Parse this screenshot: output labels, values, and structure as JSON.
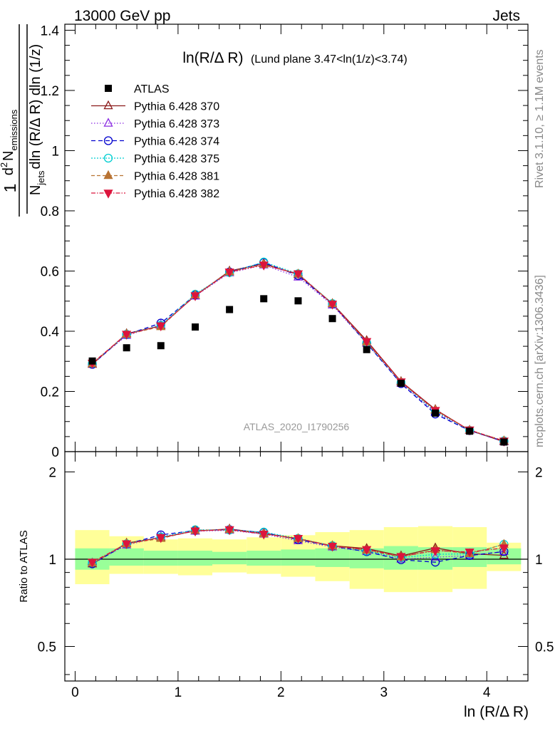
{
  "header": {
    "left": "13000 GeV pp",
    "right": "Jets"
  },
  "side": {
    "rivet": "Rivet 3.1.10, ≥ 1.1M events",
    "mcplots": "mcplots.cern.ch [arXiv:1306.3436]"
  },
  "chart_data": {
    "type": "scatter",
    "title": "ln(R/Δ R) (Lund plane 3.47<ln(1/z)<3.74)",
    "title_main": "ln(R/Δ R)",
    "title_sub": "(Lund plane 3.47<ln(1/z)<3.74)",
    "analysis": "ATLAS_2020_I1790256",
    "xlabel": "ln (R/Δ R)",
    "ylabel": "1/N_jets d²N_emissions / dln(R/ΔR) dln(1/z)",
    "ylabel_parts": {
      "one": "1",
      "d2": "d",
      "sup2": "2",
      "N": "N",
      "emissions": "emissions",
      "Njets": "N",
      "jets": "jets",
      "denom_rest": "dln (R/Δ R) dln (1/z)"
    },
    "ratio_ylabel": "Ratio to ATLAS",
    "xlim": [
      -0.1,
      4.4
    ],
    "ylim": [
      0,
      1.42
    ],
    "ratio_ylim": [
      0.38,
      2.35
    ],
    "x_ticks": [
      "0",
      "1",
      "2",
      "3",
      "4"
    ],
    "y_ticks": [
      "0",
      "0.2",
      "0.4",
      "0.6",
      "0.8",
      "1",
      "1.2",
      "1.4"
    ],
    "ratio_ticks": [
      "0.5",
      "1",
      "2"
    ],
    "x": [
      0.167,
      0.5,
      0.833,
      1.167,
      1.5,
      1.833,
      2.167,
      2.5,
      2.833,
      3.167,
      3.5,
      3.833,
      4.167
    ],
    "bin_edges": [
      0,
      0.333,
      0.667,
      1.0,
      1.333,
      1.667,
      2.0,
      2.333,
      2.667,
      3.0,
      3.333,
      3.667,
      4.0,
      4.333
    ],
    "data": {
      "name": "ATLAS",
      "values": [
        0.301,
        0.345,
        0.352,
        0.414,
        0.472,
        0.508,
        0.501,
        0.442,
        0.339,
        0.227,
        0.128,
        0.068,
        0.032
      ],
      "band_inner": [
        [
          0.92,
          1.09
        ],
        [
          0.95,
          1.09
        ],
        [
          0.95,
          1.07
        ],
        [
          0.95,
          1.07
        ],
        [
          0.96,
          1.06
        ],
        [
          0.95,
          1.07
        ],
        [
          0.95,
          1.08
        ],
        [
          0.94,
          1.09
        ],
        [
          0.93,
          1.09
        ],
        [
          0.92,
          1.11
        ],
        [
          0.92,
          1.1
        ],
        [
          0.94,
          1.1
        ],
        [
          0.96,
          1.09
        ]
      ],
      "band_outer": [
        [
          0.82,
          1.26
        ],
        [
          0.89,
          1.2
        ],
        [
          0.89,
          1.17
        ],
        [
          0.88,
          1.18
        ],
        [
          0.9,
          1.17
        ],
        [
          0.89,
          1.19
        ],
        [
          0.87,
          1.21
        ],
        [
          0.84,
          1.24
        ],
        [
          0.79,
          1.26
        ],
        [
          0.77,
          1.29
        ],
        [
          0.77,
          1.3
        ],
        [
          0.79,
          1.29
        ],
        [
          0.91,
          1.14
        ]
      ],
      "color": "#000000"
    },
    "series": [
      {
        "name": "Pythia 6.428 370",
        "color": "#8b1a1a",
        "dash": "",
        "marker": "triangle-up-open",
        "values": [
          0.29,
          0.392,
          0.418,
          0.518,
          0.6,
          0.625,
          0.588,
          0.492,
          0.369,
          0.233,
          0.14,
          0.071,
          0.033
        ]
      },
      {
        "name": "Pythia 6.428 373",
        "color": "#8a2be2",
        "dash": "1.5,2.5",
        "marker": "triangle-up-open",
        "values": [
          0.292,
          0.386,
          0.421,
          0.517,
          0.594,
          0.62,
          0.58,
          0.487,
          0.36,
          0.227,
          0.13,
          0.07,
          0.034
        ]
      },
      {
        "name": "Pythia 6.428 374",
        "color": "#0000cd",
        "dash": "6,4",
        "marker": "circle-open",
        "values": [
          0.29,
          0.389,
          0.427,
          0.52,
          0.597,
          0.628,
          0.585,
          0.49,
          0.36,
          0.226,
          0.125,
          0.07,
          0.034
        ]
      },
      {
        "name": "Pythia 6.428 375",
        "color": "#00ced1",
        "dash": "2,2",
        "marker": "circle-open",
        "values": [
          0.293,
          0.39,
          0.42,
          0.523,
          0.595,
          0.63,
          0.591,
          0.492,
          0.362,
          0.23,
          0.133,
          0.071,
          0.036
        ]
      },
      {
        "name": "Pythia 6.428 381",
        "color": "#b87333",
        "dash": "5,3",
        "marker": "triangle-up-filled",
        "values": [
          0.292,
          0.39,
          0.415,
          0.52,
          0.597,
          0.622,
          0.59,
          0.491,
          0.364,
          0.231,
          0.138,
          0.071,
          0.036
        ]
      },
      {
        "name": "Pythia 6.428 382",
        "color": "#dc143c",
        "dash": "6,2,1.5,2",
        "marker": "triangle-down-filled",
        "values": [
          0.294,
          0.39,
          0.418,
          0.518,
          0.597,
          0.62,
          0.591,
          0.49,
          0.366,
          0.232,
          0.137,
          0.072,
          0.035
        ]
      }
    ]
  }
}
